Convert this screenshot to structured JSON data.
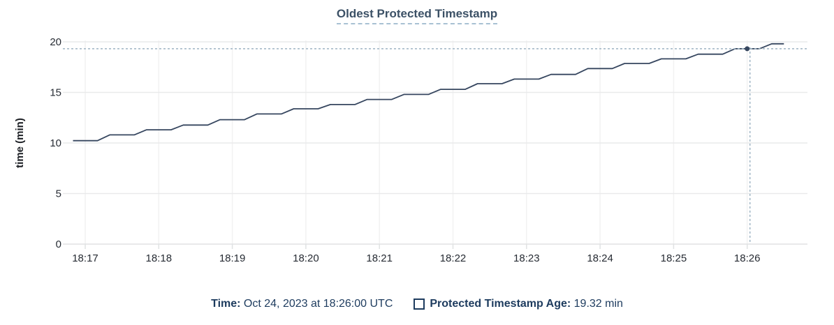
{
  "title": "Oldest Protected Timestamp",
  "colors": {
    "title_text": "#3c5166",
    "title_underline": "#a8c1d3",
    "series_line": "#36465f",
    "highlight_dot": "#36465f",
    "crosshair": "#9eb4c4",
    "h_gridline": "#e9eaeb",
    "v_gridline": "#f2f2f2",
    "axis_line": "#e0e2e3",
    "tick_text": "#262b33",
    "footer_text": "#1d3b5e"
  },
  "chart_data": {
    "type": "line",
    "title": "Oldest Protected Timestamp",
    "xlabel": "",
    "ylabel": "time (min)",
    "ylim": [
      0,
      20
    ],
    "y_ticks": [
      0,
      5,
      10,
      15,
      20
    ],
    "x_ticks": [
      "18:17",
      "18:18",
      "18:19",
      "18:20",
      "18:21",
      "18:22",
      "18:23",
      "18:24",
      "18:25",
      "18:26"
    ],
    "x_range": [
      "18:16:50",
      "18:26:30"
    ],
    "sample_interval_sec": 10,
    "grid": true,
    "legend_position": "bottom",
    "series": [
      {
        "name": "Protected Timestamp Age",
        "unit": "min",
        "x": [
          "18:16:50",
          "18:17:00",
          "18:17:10",
          "18:17:20",
          "18:17:30",
          "18:17:40",
          "18:17:50",
          "18:18:00",
          "18:18:10",
          "18:18:20",
          "18:18:30",
          "18:18:40",
          "18:18:50",
          "18:19:00",
          "18:19:10",
          "18:19:20",
          "18:19:30",
          "18:19:40",
          "18:19:50",
          "18:20:00",
          "18:20:10",
          "18:20:20",
          "18:20:30",
          "18:20:40",
          "18:20:50",
          "18:21:00",
          "18:21:10",
          "18:21:20",
          "18:21:30",
          "18:21:40",
          "18:21:50",
          "18:22:00",
          "18:22:10",
          "18:22:20",
          "18:22:30",
          "18:22:40",
          "18:22:50",
          "18:23:00",
          "18:23:10",
          "18:23:20",
          "18:23:30",
          "18:23:40",
          "18:23:50",
          "18:24:00",
          "18:24:10",
          "18:24:20",
          "18:24:30",
          "18:24:40",
          "18:24:50",
          "18:25:00",
          "18:25:10",
          "18:25:20",
          "18:25:30",
          "18:25:40",
          "18:25:50",
          "18:26:00",
          "18:26:10",
          "18:26:20",
          "18:26:30"
        ],
        "values": [
          10.23,
          10.23,
          10.23,
          10.8,
          10.8,
          10.8,
          11.3,
          11.3,
          11.3,
          11.77,
          11.77,
          11.77,
          12.3,
          12.3,
          12.3,
          12.87,
          12.87,
          12.87,
          13.38,
          13.38,
          13.38,
          13.8,
          13.8,
          13.8,
          14.3,
          14.3,
          14.3,
          14.8,
          14.8,
          14.8,
          15.3,
          15.3,
          15.3,
          15.86,
          15.86,
          15.86,
          16.32,
          16.32,
          16.32,
          16.78,
          16.78,
          16.78,
          17.36,
          17.36,
          17.36,
          17.86,
          17.86,
          17.86,
          18.32,
          18.32,
          18.32,
          18.78,
          18.78,
          18.78,
          19.32,
          19.32,
          19.32,
          19.81,
          19.81
        ]
      }
    ],
    "highlight": {
      "time": "18:26:00",
      "value": 19.32
    }
  },
  "footer": {
    "time_label": "Time:",
    "time_value": " Oct 24, 2023 at 18:26:00 UTC",
    "series_label": "Protected Timestamp Age:",
    "series_value": " 19.32 min"
  }
}
